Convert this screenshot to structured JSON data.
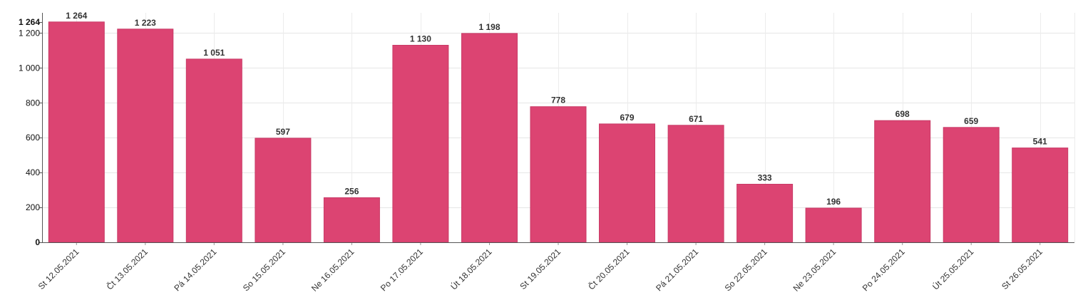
{
  "chart_data": {
    "type": "bar",
    "categories": [
      "St 12.05.2021",
      "Čt 13.05.2021",
      "Pá 14.05.2021",
      "So 15.05.2021",
      "Ne 16.05.2021",
      "Po 17.05.2021",
      "Út 18.05.2021",
      "St 19.05.2021",
      "Čt 20.05.2021",
      "Pá 21.05.2021",
      "So 22.05.2021",
      "Ne 23.05.2021",
      "Po 24.05.2021",
      "Út 25.05.2021",
      "St 26.05.2021"
    ],
    "values": [
      1264,
      1223,
      1051,
      597,
      256,
      1130,
      1198,
      778,
      679,
      671,
      333,
      196,
      698,
      659,
      541
    ],
    "value_labels": [
      "1 264",
      "1 223",
      "1 051",
      "597",
      "256",
      "1 130",
      "1 198",
      "778",
      "679",
      "671",
      "333",
      "196",
      "698",
      "659",
      "541"
    ],
    "yticks": [
      0,
      200,
      400,
      600,
      800,
      1000,
      1200
    ],
    "ytick_labels": [
      "0",
      "200",
      "400",
      "600",
      "800",
      "1 000",
      "1 200"
    ],
    "ymax_label": "1 264",
    "ylim": [
      0,
      1300
    ],
    "bar_color": "#dc4472",
    "grid": true,
    "title": "",
    "xlabel": "",
    "ylabel": ""
  }
}
